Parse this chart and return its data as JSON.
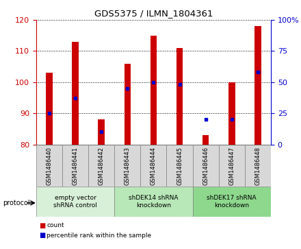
{
  "title": "GDS5375 / ILMN_1804361",
  "samples": [
    "GSM1486440",
    "GSM1486441",
    "GSM1486442",
    "GSM1486443",
    "GSM1486444",
    "GSM1486445",
    "GSM1486446",
    "GSM1486447",
    "GSM1486448"
  ],
  "counts": [
    103,
    113,
    88,
    106,
    115,
    111,
    83,
    100,
    118
  ],
  "percentiles": [
    25,
    37,
    10,
    45,
    50,
    48,
    20,
    20,
    58
  ],
  "ylim_left": [
    80,
    120
  ],
  "ylim_right": [
    0,
    100
  ],
  "yticks_left": [
    80,
    90,
    100,
    110,
    120
  ],
  "yticks_right": [
    0,
    25,
    50,
    75,
    100
  ],
  "groups": [
    {
      "label": "empty vector\nshRNA control",
      "start": 0,
      "end": 3
    },
    {
      "label": "shDEK14 shRNA\nknockdown",
      "start": 3,
      "end": 6
    },
    {
      "label": "shDEK17 shRNA\nknockdown",
      "start": 6,
      "end": 9
    }
  ],
  "group_colors": [
    "#d8f0d8",
    "#b8e8b8",
    "#8ed88e"
  ],
  "tick_box_color": "#d8d8d8",
  "bar_color": "#cc0000",
  "percentile_color": "#0000cc",
  "bar_width": 0.25,
  "left_axis_color": "#cc0000",
  "right_axis_color": "#0000cc"
}
